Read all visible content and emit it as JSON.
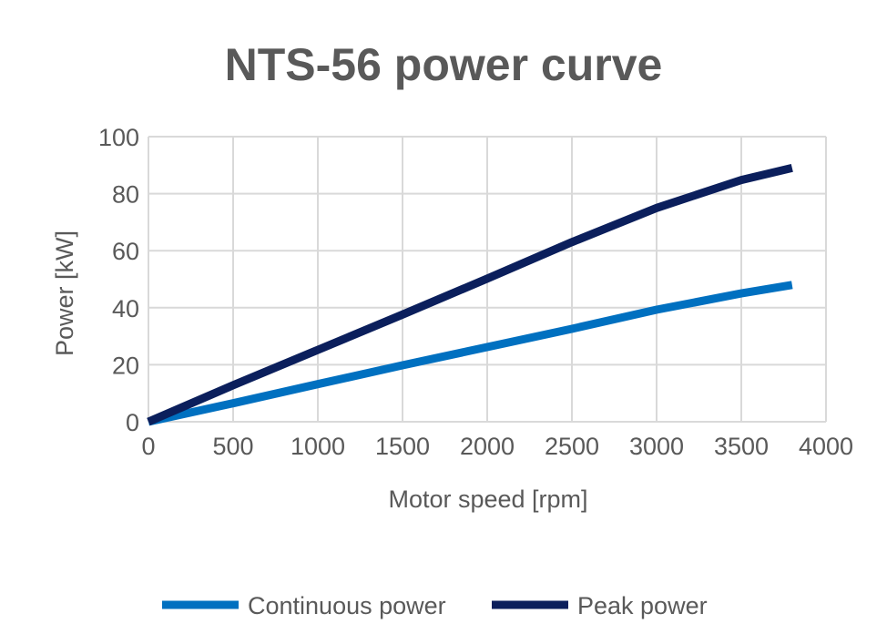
{
  "chart_data": {
    "type": "line",
    "title": "NTS-56 power curve",
    "xlabel": "Motor speed [rpm]",
    "ylabel": "Power [kW]",
    "xlim": [
      0,
      4000
    ],
    "ylim": [
      0,
      100
    ],
    "xticks": [
      "0",
      "500",
      "1000",
      "1500",
      "2000",
      "2500",
      "3000",
      "3500",
      "4000"
    ],
    "yticks": [
      "0",
      "20",
      "40",
      "60",
      "80",
      "100"
    ],
    "grid": true,
    "legend_position": "bottom",
    "series": [
      {
        "name": "Continuous power",
        "color": "#0070C0",
        "x": [
          0,
          500,
          1000,
          1500,
          2000,
          2500,
          3000,
          3500,
          3800
        ],
        "y": [
          0,
          6.5,
          13.2,
          19.8,
          26.2,
          32.6,
          39.3,
          45.0,
          48.0
        ]
      },
      {
        "name": "Peak power",
        "color": "#0B1F5C",
        "x": [
          0,
          500,
          1000,
          1500,
          2000,
          2500,
          3000,
          3500,
          3800
        ],
        "y": [
          0,
          12.8,
          25.2,
          37.6,
          50.2,
          63.0,
          75.0,
          84.8,
          89.0
        ]
      }
    ]
  }
}
